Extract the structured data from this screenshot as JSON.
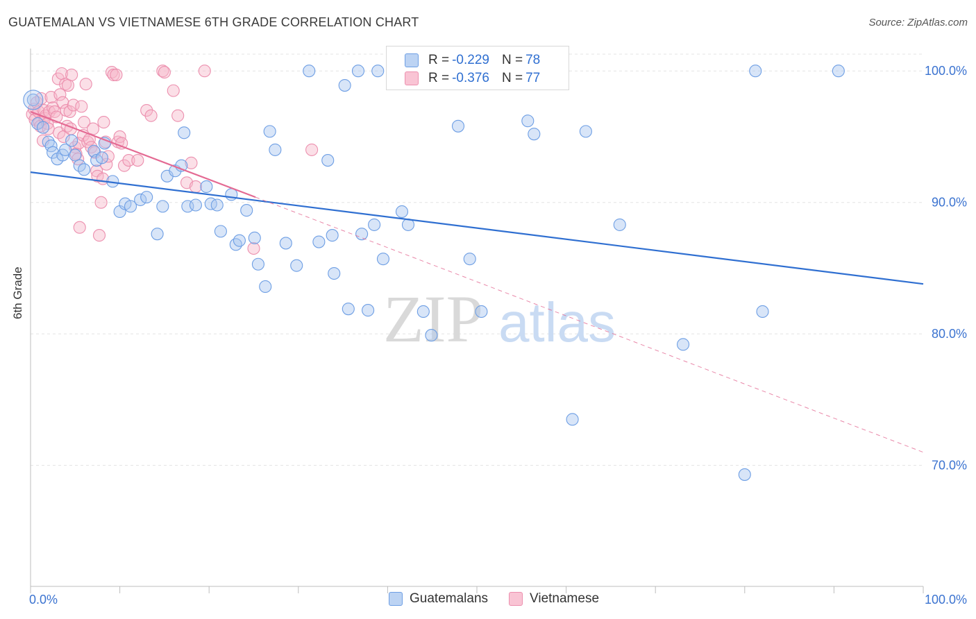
{
  "title": "GUATEMALAN VS VIETNAMESE 6TH GRADE CORRELATION CHART",
  "source": "Source: ZipAtlas.com",
  "watermark": {
    "zip": "ZIP",
    "atlas": "atlas"
  },
  "legend_top": {
    "rows": [
      {
        "r_label": "R =",
        "r_value": "-0.229",
        "n_label": "N =",
        "n_value": "78"
      },
      {
        "r_label": "R =",
        "r_value": "-0.376",
        "n_label": "N =",
        "n_value": "77"
      }
    ]
  },
  "colors": {
    "blue_fill": "#a9c6ef",
    "blue_stroke": "#6d9ee4",
    "blue_line": "#2f6fd1",
    "pink_fill": "#f7b7ca",
    "pink_stroke": "#ec8fae",
    "pink_line": "#e46a93",
    "axis_text": "#3b73d0",
    "grid": "#e3e3e3"
  },
  "chart_data": {
    "type": "scatter",
    "title": "GUATEMALAN VS VIETNAMESE 6TH GRADE CORRELATION CHART",
    "xlabel": "",
    "ylabel": "6th Grade",
    "xlim": [
      0,
      100
    ],
    "ylim": [
      60.8,
      101.7
    ],
    "x_tick_labels": [
      "0.0%",
      "100.0%"
    ],
    "y_ticks": [
      70,
      80,
      90,
      100
    ],
    "y_tick_labels": [
      "70.0%",
      "80.0%",
      "90.0%",
      "100.0%"
    ],
    "grid": true,
    "legend_placement": "bottom-center",
    "series": [
      {
        "name": "Guatemalans",
        "color": "#6d9ee4",
        "R": -0.229,
        "N": 78,
        "trend": {
          "x": [
            0,
            100
          ],
          "y": [
            92.3,
            83.8
          ]
        },
        "points": [
          [
            0.3,
            97.8
          ],
          [
            0.8,
            96.0
          ],
          [
            1.4,
            95.7
          ],
          [
            2.0,
            94.6
          ],
          [
            2.3,
            94.3
          ],
          [
            2.5,
            93.8
          ],
          [
            3.0,
            93.3
          ],
          [
            3.6,
            93.6
          ],
          [
            3.9,
            94.0
          ],
          [
            4.6,
            94.7
          ],
          [
            5.0,
            93.6
          ],
          [
            5.5,
            92.8
          ],
          [
            6.0,
            92.5
          ],
          [
            7.1,
            93.9
          ],
          [
            7.4,
            93.2
          ],
          [
            8.0,
            93.4
          ],
          [
            8.3,
            94.5
          ],
          [
            9.2,
            91.6
          ],
          [
            10.0,
            89.3
          ],
          [
            10.6,
            89.9
          ],
          [
            11.2,
            89.7
          ],
          [
            12.3,
            90.2
          ],
          [
            13.0,
            90.4
          ],
          [
            14.2,
            87.6
          ],
          [
            14.8,
            89.7
          ],
          [
            15.3,
            92.0
          ],
          [
            16.2,
            92.4
          ],
          [
            16.9,
            92.8
          ],
          [
            17.2,
            95.3
          ],
          [
            17.6,
            89.7
          ],
          [
            18.5,
            89.8
          ],
          [
            19.7,
            91.2
          ],
          [
            20.2,
            89.9
          ],
          [
            20.9,
            89.8
          ],
          [
            21.3,
            87.8
          ],
          [
            22.5,
            90.6
          ],
          [
            23.0,
            86.8
          ],
          [
            23.4,
            87.1
          ],
          [
            24.2,
            89.4
          ],
          [
            25.1,
            87.3
          ],
          [
            25.5,
            85.3
          ],
          [
            26.3,
            83.6
          ],
          [
            26.8,
            95.4
          ],
          [
            27.4,
            94.0
          ],
          [
            28.6,
            86.9
          ],
          [
            29.8,
            85.2
          ],
          [
            31.2,
            100.0
          ],
          [
            32.3,
            87.0
          ],
          [
            33.3,
            93.2
          ],
          [
            33.8,
            87.5
          ],
          [
            34.0,
            84.6
          ],
          [
            35.2,
            98.9
          ],
          [
            35.6,
            81.9
          ],
          [
            36.7,
            100.0
          ],
          [
            37.1,
            87.6
          ],
          [
            37.8,
            81.8
          ],
          [
            38.5,
            88.3
          ],
          [
            38.9,
            100.0
          ],
          [
            39.5,
            85.7
          ],
          [
            41.6,
            89.3
          ],
          [
            42.3,
            88.3
          ],
          [
            44.0,
            81.7
          ],
          [
            44.9,
            79.9
          ],
          [
            46.5,
            100.0
          ],
          [
            47.9,
            95.8
          ],
          [
            49.2,
            85.7
          ],
          [
            50.5,
            81.7
          ],
          [
            52.0,
            100.0
          ],
          [
            55.7,
            96.2
          ],
          [
            56.4,
            95.2
          ],
          [
            60.7,
            73.5
          ],
          [
            62.2,
            95.4
          ],
          [
            66.0,
            88.3
          ],
          [
            73.1,
            79.2
          ],
          [
            80.0,
            69.3
          ],
          [
            81.2,
            100.0
          ],
          [
            82.0,
            81.7
          ],
          [
            90.5,
            100.0
          ]
        ]
      },
      {
        "name": "Vietnamese",
        "color": "#ec8fae",
        "R": -0.376,
        "N": 77,
        "trend": {
          "x": [
            0,
            25.2
          ],
          "y": [
            96.9,
            90.4
          ]
        },
        "trend_dashed": {
          "x": [
            25.2,
            100
          ],
          "y": [
            90.4,
            71.0
          ]
        },
        "points": [
          [
            0.2,
            96.7
          ],
          [
            0.4,
            97.1
          ],
          [
            0.5,
            96.3
          ],
          [
            0.7,
            97.6
          ],
          [
            0.9,
            96.9
          ],
          [
            1.0,
            96.1
          ],
          [
            1.1,
            95.8
          ],
          [
            1.2,
            97.9
          ],
          [
            1.4,
            94.7
          ],
          [
            1.5,
            97.0
          ],
          [
            1.6,
            96.4
          ],
          [
            1.7,
            96.6
          ],
          [
            1.9,
            96.0
          ],
          [
            2.0,
            95.6
          ],
          [
            2.1,
            96.9
          ],
          [
            2.3,
            98.0
          ],
          [
            2.5,
            97.2
          ],
          [
            2.7,
            96.9
          ],
          [
            2.9,
            96.5
          ],
          [
            3.1,
            99.4
          ],
          [
            3.2,
            95.3
          ],
          [
            3.3,
            98.2
          ],
          [
            3.5,
            99.8
          ],
          [
            3.6,
            97.6
          ],
          [
            3.7,
            95.0
          ],
          [
            3.9,
            99.0
          ],
          [
            4.0,
            97.0
          ],
          [
            4.1,
            95.8
          ],
          [
            4.2,
            98.9
          ],
          [
            4.4,
            96.9
          ],
          [
            4.5,
            95.6
          ],
          [
            4.6,
            99.7
          ],
          [
            4.8,
            97.4
          ],
          [
            5.0,
            94.2
          ],
          [
            5.1,
            93.7
          ],
          [
            5.3,
            93.3
          ],
          [
            5.4,
            94.5
          ],
          [
            5.5,
            88.1
          ],
          [
            5.7,
            97.3
          ],
          [
            5.9,
            95.1
          ],
          [
            6.0,
            96.1
          ],
          [
            6.2,
            99.0
          ],
          [
            6.4,
            94.6
          ],
          [
            6.6,
            94.8
          ],
          [
            6.8,
            94.2
          ],
          [
            7.0,
            95.6
          ],
          [
            7.2,
            93.8
          ],
          [
            7.4,
            92.4
          ],
          [
            7.5,
            92.0
          ],
          [
            7.7,
            87.5
          ],
          [
            7.9,
            90.0
          ],
          [
            8.1,
            91.8
          ],
          [
            8.2,
            96.1
          ],
          [
            8.4,
            94.6
          ],
          [
            8.5,
            92.9
          ],
          [
            8.7,
            93.5
          ],
          [
            9.1,
            99.9
          ],
          [
            9.3,
            99.7
          ],
          [
            9.6,
            99.7
          ],
          [
            9.8,
            94.6
          ],
          [
            10.0,
            95.0
          ],
          [
            10.2,
            94.5
          ],
          [
            10.5,
            92.8
          ],
          [
            11.0,
            93.2
          ],
          [
            12.0,
            93.2
          ],
          [
            13.0,
            97.0
          ],
          [
            13.5,
            96.6
          ],
          [
            14.8,
            100.0
          ],
          [
            15.0,
            99.9
          ],
          [
            16.0,
            98.5
          ],
          [
            16.5,
            96.6
          ],
          [
            17.5,
            91.5
          ],
          [
            18.0,
            93.0
          ],
          [
            18.5,
            91.2
          ],
          [
            19.5,
            100.0
          ],
          [
            25.0,
            86.5
          ],
          [
            31.5,
            94.0
          ]
        ]
      }
    ]
  },
  "legend_bottom": {
    "items": [
      "Guatemalans",
      "Vietnamese"
    ]
  }
}
